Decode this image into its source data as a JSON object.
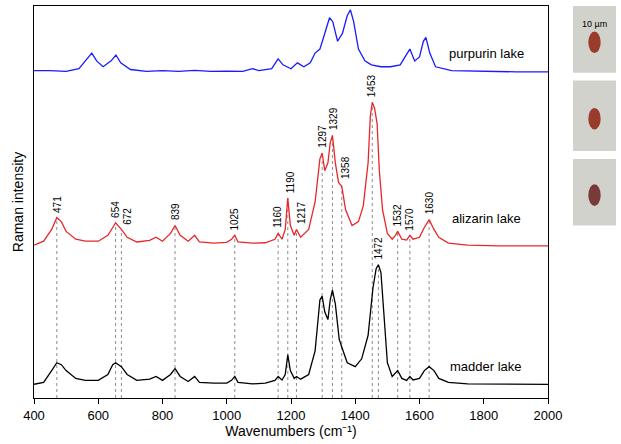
{
  "chart_data": {
    "type": "line",
    "x_label": "Wavenumbers (cm⁻¹)",
    "y_label": "Raman intensity",
    "xlim": [
      400,
      2000
    ],
    "xticks": [
      400,
      600,
      800,
      1000,
      1200,
      1400,
      1600,
      1800,
      2000
    ],
    "ylim": [
      0,
      100
    ],
    "tick_labels": "x",
    "grid": false,
    "series": [
      {
        "name": "purpurin lake",
        "color": "#1a1aff",
        "x": [
          400,
          450,
          500,
          540,
          565,
          580,
          595,
          615,
          640,
          655,
          670,
          700,
          750,
          800,
          850,
          900,
          950,
          1000,
          1050,
          1080,
          1100,
          1140,
          1160,
          1175,
          1200,
          1220,
          1240,
          1260,
          1275,
          1290,
          1305,
          1320,
          1330,
          1345,
          1360,
          1375,
          1385,
          1395,
          1410,
          1430,
          1450,
          1480,
          1510,
          1540,
          1555,
          1570,
          1585,
          1600,
          1612,
          1620,
          1632,
          1650,
          1700,
          1800,
          1900,
          2000
        ],
        "values": [
          83.5,
          83.5,
          83.3,
          84,
          86.5,
          88,
          86,
          84.5,
          86,
          87.5,
          85.5,
          83.8,
          83.3,
          83.5,
          83.3,
          83.6,
          83.3,
          83.4,
          83.3,
          84,
          83.5,
          84,
          86.5,
          85,
          84,
          85.5,
          84.5,
          85.5,
          88,
          89,
          93,
          97,
          96,
          91,
          93,
          97.5,
          99,
          96,
          89,
          86,
          85,
          84.5,
          84.5,
          85,
          87,
          89,
          86,
          87,
          91,
          92,
          88,
          84.5,
          83.5,
          83.3,
          83.2,
          83.2
        ]
      },
      {
        "name": "alizarin lake",
        "color": "#e8262a",
        "x": [
          400,
          430,
          455,
          471,
          485,
          500,
          530,
          560,
          600,
          630,
          645,
          654,
          672,
          690,
          720,
          760,
          780,
          800,
          825,
          839,
          855,
          880,
          900,
          915,
          960,
          1000,
          1015,
          1025,
          1035,
          1080,
          1120,
          1150,
          1160,
          1172,
          1182,
          1190,
          1198,
          1210,
          1217,
          1230,
          1255,
          1275,
          1290,
          1297,
          1305,
          1315,
          1322,
          1329,
          1338,
          1348,
          1358,
          1370,
          1390,
          1410,
          1425,
          1440,
          1447,
          1453,
          1460,
          1468,
          1475,
          1485,
          1500,
          1515,
          1525,
          1532,
          1545,
          1560,
          1570,
          1580,
          1600,
          1615,
          1630,
          1645,
          1660,
          1690,
          1750,
          1850,
          1950,
          2000
        ],
        "values": [
          39,
          40,
          43,
          46,
          45,
          42.5,
          40.5,
          40,
          40,
          41.5,
          43.5,
          44.7,
          43,
          41,
          39.8,
          40.2,
          41,
          40,
          42,
          44,
          41.5,
          40,
          41.5,
          39.8,
          39.5,
          39.7,
          40.5,
          41.5,
          39.8,
          39.5,
          39.6,
          40.5,
          42,
          40.5,
          43,
          51,
          44,
          41.5,
          43,
          41,
          43,
          50,
          61,
          62.5,
          58,
          60,
          65,
          67,
          60,
          55,
          54,
          48,
          44,
          45,
          49,
          60,
          72,
          75.4,
          74,
          70,
          58,
          48,
          42,
          40.5,
          41.5,
          42.5,
          40.5,
          40.3,
          41.5,
          40.5,
          41,
          43.5,
          45.5,
          43,
          41,
          39.5,
          39,
          38.8,
          38.8,
          38.8
        ]
      },
      {
        "name": "madder lake",
        "color": "#000000",
        "x": [
          400,
          430,
          455,
          471,
          485,
          500,
          530,
          560,
          600,
          630,
          645,
          654,
          672,
          690,
          720,
          760,
          780,
          800,
          825,
          839,
          855,
          880,
          900,
          915,
          960,
          1000,
          1015,
          1025,
          1035,
          1080,
          1120,
          1150,
          1160,
          1172,
          1182,
          1190,
          1198,
          1210,
          1217,
          1230,
          1255,
          1275,
          1290,
          1297,
          1305,
          1315,
          1322,
          1329,
          1338,
          1350,
          1358,
          1375,
          1400,
          1420,
          1440,
          1455,
          1465,
          1472,
          1480,
          1490,
          1500,
          1515,
          1525,
          1532,
          1545,
          1560,
          1570,
          1580,
          1600,
          1615,
          1630,
          1645,
          1660,
          1690,
          1750,
          1850,
          1950,
          2000
        ],
        "values": [
          3.5,
          4,
          7,
          9,
          8.5,
          7,
          5,
          4.5,
          4.5,
          6,
          8.5,
          9,
          8,
          6,
          4.5,
          4.8,
          5.5,
          4.5,
          6,
          7.5,
          5.5,
          4.2,
          5.5,
          4,
          3.8,
          3.8,
          4.5,
          5.5,
          4,
          3.6,
          3.8,
          4.5,
          5.5,
          4.6,
          6,
          11,
          7,
          5,
          5.5,
          4.8,
          6,
          12,
          25,
          26,
          22,
          20,
          25,
          27.5,
          24,
          15,
          13,
          9,
          8,
          10,
          16,
          28,
          33,
          34,
          32,
          20,
          9,
          5.5,
          6.5,
          7,
          5,
          4.5,
          5.5,
          4.6,
          5,
          7,
          8,
          7,
          5,
          4,
          3.6,
          3.5,
          3.5,
          3.5
        ]
      }
    ],
    "annotations": [
      {
        "x": 471,
        "text": "471",
        "series": "alizarin lake"
      },
      {
        "x": 654,
        "text": "654",
        "series": "alizarin lake"
      },
      {
        "x": 672,
        "text": "672",
        "series": "alizarin lake"
      },
      {
        "x": 839,
        "text": "839",
        "series": "alizarin lake"
      },
      {
        "x": 1025,
        "text": "1025",
        "series": "alizarin lake"
      },
      {
        "x": 1160,
        "text": "1160",
        "series": "alizarin lake"
      },
      {
        "x": 1190,
        "text": "1190",
        "series": "alizarin lake"
      },
      {
        "x": 1217,
        "text": "1217",
        "series": "alizarin lake"
      },
      {
        "x": 1297,
        "text": "1297",
        "series": "alizarin lake"
      },
      {
        "x": 1329,
        "text": "1329",
        "series": "alizarin lake"
      },
      {
        "x": 1358,
        "text": "1358",
        "series": "alizarin lake"
      },
      {
        "x": 1453,
        "text": "1453",
        "series": "alizarin lake"
      },
      {
        "x": 1532,
        "text": "1532",
        "series": "alizarin lake"
      },
      {
        "x": 1570,
        "text": "1570",
        "series": "alizarin lake"
      },
      {
        "x": 1630,
        "text": "1630",
        "series": "alizarin lake"
      },
      {
        "x": 1472,
        "text": "1472",
        "series": "madder lake"
      }
    ]
  },
  "photos": {
    "scale_label": "10 µm"
  }
}
